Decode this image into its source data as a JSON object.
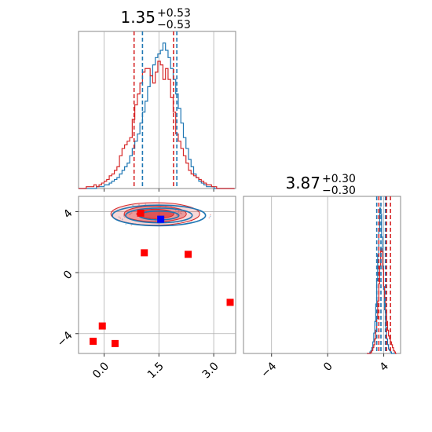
{
  "chart_data": [
    {
      "type": "histogram",
      "panel": "marginal-x",
      "title": {
        "value": "1.35",
        "plus": "+0.53",
        "minus": "−0.53"
      },
      "xlim": [
        -0.7,
        3.6
      ],
      "grid": true,
      "bins": {
        "start": -0.7,
        "width": 0.07,
        "count": 61
      },
      "series": [
        {
          "color": "#1f77b4",
          "counts": [
            0,
            0,
            0,
            0,
            0,
            0,
            0,
            1,
            1,
            1,
            2,
            2,
            3,
            4,
            5,
            6,
            8,
            10,
            12,
            14,
            18,
            22,
            26,
            30,
            36,
            42,
            48,
            56,
            62,
            68,
            72,
            74,
            76,
            80,
            76,
            72,
            66,
            60,
            52,
            44,
            36,
            28,
            22,
            16,
            12,
            8,
            6,
            4,
            3,
            2,
            1,
            1,
            1,
            0,
            0,
            0,
            0,
            0,
            0,
            0,
            0
          ],
          "quantile_lines": [
            1.05,
            1.99
          ]
        },
        {
          "color": "#d62728",
          "counts": [
            0,
            0,
            0,
            1,
            1,
            1,
            2,
            1,
            2,
            3,
            4,
            5,
            7,
            8,
            10,
            12,
            18,
            22,
            24,
            26,
            28,
            38,
            46,
            52,
            58,
            64,
            66,
            66,
            62,
            58,
            64,
            70,
            68,
            60,
            66,
            60,
            50,
            42,
            30,
            26,
            22,
            18,
            14,
            10,
            8,
            7,
            6,
            5,
            4,
            3,
            2,
            2,
            1,
            1,
            0,
            0,
            0,
            0,
            0,
            0,
            0
          ],
          "quantile_lines": [
            0.82,
            1.9
          ]
        }
      ],
      "xticks": [
        0.0,
        1.5,
        3.0
      ]
    },
    {
      "type": "scatter-contour",
      "panel": "joint",
      "xlim": [
        -0.7,
        3.6
      ],
      "ylim": [
        -5.3,
        5.0
      ],
      "grid": true,
      "xticks": [
        0.0,
        1.5,
        3.0
      ],
      "xtick_labels": [
        "0.0",
        "1.5",
        "3.0"
      ],
      "yticks": [
        4,
        0,
        -4
      ],
      "ytick_labels": [
        "4",
        "0",
        "−4"
      ],
      "blue_contour": {
        "color": "#1f77b4",
        "center": [
          1.5,
          3.75
        ],
        "spread": [
          0.9,
          0.28
        ]
      },
      "red_contour": {
        "color": "#d62728",
        "center": [
          1.4,
          3.85
        ],
        "spread": [
          0.9,
          0.32
        ]
      },
      "red_points": [
        {
          "x": 1.0,
          "y": 3.9
        },
        {
          "x": 1.1,
          "y": 1.3
        },
        {
          "x": 2.3,
          "y": 1.2
        },
        {
          "x": 3.45,
          "y": -1.95
        },
        {
          "x": -0.05,
          "y": -3.5
        },
        {
          "x": -0.3,
          "y": -4.5
        },
        {
          "x": 0.3,
          "y": -4.65
        }
      ],
      "blue_points": [
        {
          "x": 1.55,
          "y": 3.5
        }
      ]
    },
    {
      "type": "histogram",
      "panel": "marginal-y",
      "title": {
        "value": "3.87",
        "plus": "+0.30",
        "minus": "−0.30"
      },
      "xlim": [
        -6.0,
        5.2
      ],
      "grid": true,
      "xticks": [
        -4,
        0,
        4
      ],
      "xtick_labels": [
        "−4",
        "0",
        "4"
      ],
      "bins": {
        "start": 2.8,
        "width": 0.07,
        "count": 30
      },
      "series": [
        {
          "color": "#1f77b4",
          "counts": [
            0,
            0,
            0,
            1,
            2,
            4,
            8,
            14,
            22,
            34,
            50,
            68,
            84,
            100,
            96,
            80,
            60,
            44,
            30,
            18,
            10,
            6,
            3,
            2,
            1,
            0,
            0,
            0,
            0,
            0
          ],
          "quantile_lines": [
            3.5,
            3.8,
            4.12
          ]
        },
        {
          "color": "#d62728",
          "counts": [
            0,
            0,
            0,
            0,
            1,
            2,
            4,
            6,
            10,
            16,
            24,
            36,
            48,
            60,
            72,
            70,
            58,
            46,
            38,
            30,
            22,
            16,
            12,
            10,
            8,
            6,
            4,
            2,
            1,
            0
          ],
          "quantile_lines": [
            3.65,
            4.2,
            4.48
          ]
        }
      ]
    }
  ]
}
